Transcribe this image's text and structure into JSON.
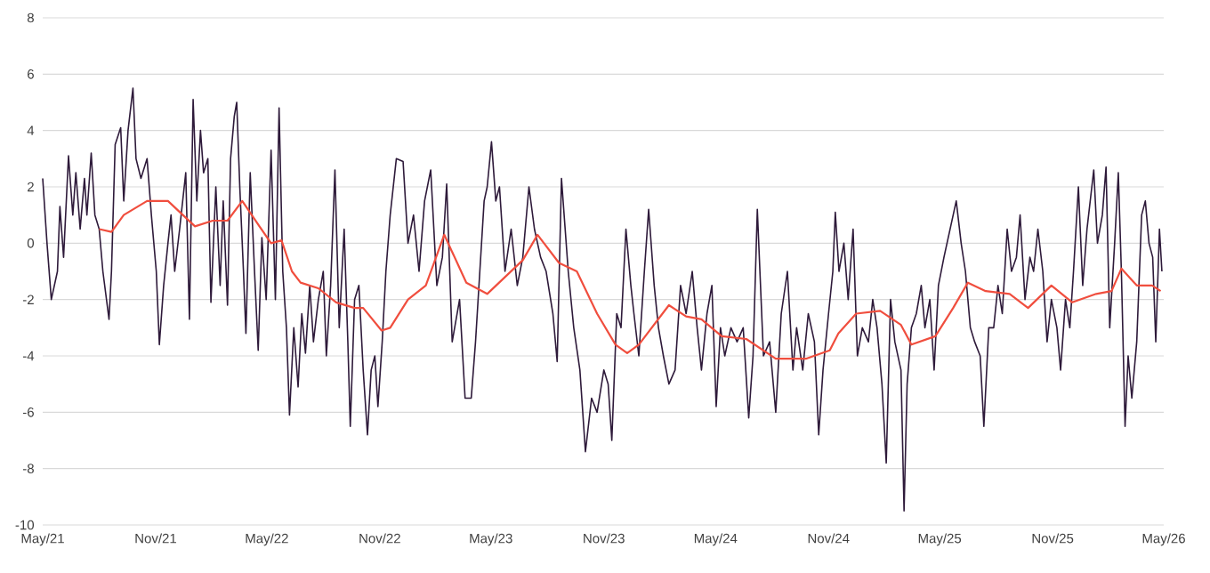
{
  "chart_data": {
    "type": "line",
    "xlim": [
      "2021-05",
      "2026-05"
    ],
    "xticks": [
      {
        "value": "2021-05",
        "label": "May/21"
      },
      {
        "value": "2021-11",
        "label": "Nov/21"
      },
      {
        "value": "2022-05",
        "label": "May/22"
      },
      {
        "value": "2022-11",
        "label": "Nov/22"
      },
      {
        "value": "2023-05",
        "label": "May/23"
      },
      {
        "value": "2023-11",
        "label": "Nov/23"
      },
      {
        "value": "2024-05",
        "label": "May/24"
      },
      {
        "value": "2024-11",
        "label": "Nov/24"
      },
      {
        "value": "2025-05",
        "label": "May/25"
      },
      {
        "value": "2025-11",
        "label": "Nov/25"
      },
      {
        "value": "2026-05",
        "label": "May/26"
      }
    ],
    "ylim": [
      -10,
      8
    ],
    "yticks": [
      -10,
      -8,
      -6,
      -4,
      -2,
      0,
      2,
      4,
      6,
      8
    ],
    "grid": "y",
    "series": [
      {
        "color": "#2e1a3a",
        "x": [
          "2021-05-01",
          "2021-05-08",
          "2021-05-15",
          "2021-05-25",
          "2021-05-29",
          "2021-06-04",
          "2021-06-12",
          "2021-06-19",
          "2021-06-24",
          "2021-07-01",
          "2021-07-08",
          "2021-07-12",
          "2021-07-19",
          "2021-07-25",
          "2021-08-01",
          "2021-08-07",
          "2021-08-17",
          "2021-08-21",
          "2021-08-27",
          "2021-09-05",
          "2021-09-10",
          "2021-09-17",
          "2021-09-25",
          "2021-09-30",
          "2021-10-08",
          "2021-10-18",
          "2021-10-25",
          "2021-11-02",
          "2021-11-07",
          "2021-11-14",
          "2021-11-21",
          "2021-11-26",
          "2021-12-02",
          "2021-12-10",
          "2021-12-20",
          "2021-12-26",
          "2022-01-01",
          "2022-01-07",
          "2022-01-13",
          "2022-01-18",
          "2022-01-25",
          "2022-01-30",
          "2022-02-07",
          "2022-02-14",
          "2022-02-19",
          "2022-02-26",
          "2022-03-03",
          "2022-03-09",
          "2022-03-13",
          "2022-03-18",
          "2022-03-24",
          "2022-03-28",
          "2022-04-04",
          "2022-04-11",
          "2022-04-17",
          "2022-04-23",
          "2022-04-30",
          "2022-05-08",
          "2022-05-15",
          "2022-05-21",
          "2022-05-27",
          "2022-06-02",
          "2022-06-07",
          "2022-06-14",
          "2022-06-21",
          "2022-06-27",
          "2022-07-03",
          "2022-07-10",
          "2022-07-16",
          "2022-07-24",
          "2022-08-01",
          "2022-08-06",
          "2022-08-13",
          "2022-08-20",
          "2022-08-27",
          "2022-09-04",
          "2022-09-10",
          "2022-09-14",
          "2022-09-21",
          "2022-09-28",
          "2022-10-05",
          "2022-10-12",
          "2022-10-18",
          "2022-10-24",
          "2022-10-29",
          "2022-11-05",
          "2022-11-11",
          "2022-11-18",
          "2022-11-28",
          "2022-12-09",
          "2022-12-17",
          "2022-12-26",
          "2023-01-04",
          "2023-01-13",
          "2023-01-23",
          "2023-02-02",
          "2023-02-11",
          "2023-02-18",
          "2023-02-27",
          "2023-03-11",
          "2023-03-20",
          "2023-03-30",
          "2023-04-06",
          "2023-04-13",
          "2023-04-20",
          "2023-04-25",
          "2023-05-02",
          "2023-05-09",
          "2023-05-15",
          "2023-05-24",
          "2023-06-03",
          "2023-06-13",
          "2023-06-22",
          "2023-07-02",
          "2023-07-11",
          "2023-07-21",
          "2023-07-30",
          "2023-08-10",
          "2023-08-17",
          "2023-08-24",
          "2023-09-04",
          "2023-09-13",
          "2023-09-23",
          "2023-10-02",
          "2023-10-12",
          "2023-10-21",
          "2023-11-01",
          "2023-11-08",
          "2023-11-14",
          "2023-11-22",
          "2023-11-29",
          "2023-12-07",
          "2023-12-15",
          "2023-12-20",
          "2023-12-28",
          "2024-01-06",
          "2024-01-13",
          "2024-01-22",
          "2024-01-29",
          "2024-02-06",
          "2024-02-15",
          "2024-02-25",
          "2024-03-05",
          "2024-03-14",
          "2024-03-24",
          "2024-04-01",
          "2024-04-08",
          "2024-04-17",
          "2024-04-25",
          "2024-05-02",
          "2024-05-09",
          "2024-05-16",
          "2024-05-26",
          "2024-06-05",
          "2024-06-15",
          "2024-06-24",
          "2024-07-01",
          "2024-07-08",
          "2024-07-18",
          "2024-07-28",
          "2024-08-07",
          "2024-08-16",
          "2024-08-26",
          "2024-09-04",
          "2024-09-10",
          "2024-09-20",
          "2024-09-29",
          "2024-10-09",
          "2024-10-16",
          "2024-10-23",
          "2024-11-01",
          "2024-11-08",
          "2024-11-12",
          "2024-11-18",
          "2024-11-26",
          "2024-12-03",
          "2024-12-11",
          "2024-12-18",
          "2024-12-26",
          "2025-01-05",
          "2025-01-12",
          "2025-01-19",
          "2025-01-27",
          "2025-02-03",
          "2025-02-10",
          "2025-02-17",
          "2025-02-27",
          "2025-03-04",
          "2025-03-09",
          "2025-03-16",
          "2025-03-24",
          "2025-04-01",
          "2025-04-07",
          "2025-04-15",
          "2025-04-22",
          "2025-04-29",
          "2025-05-08",
          "2025-05-18",
          "2025-05-28",
          "2025-06-05",
          "2025-06-12",
          "2025-06-20",
          "2025-06-27",
          "2025-07-06",
          "2025-07-12",
          "2025-07-20",
          "2025-07-28",
          "2025-08-04",
          "2025-08-11",
          "2025-08-19",
          "2025-08-26",
          "2025-09-03",
          "2025-09-09",
          "2025-09-17",
          "2025-09-25",
          "2025-10-01",
          "2025-10-08",
          "2025-10-16",
          "2025-10-23",
          "2025-10-30",
          "2025-11-08",
          "2025-11-14",
          "2025-11-22",
          "2025-11-29",
          "2025-12-05",
          "2025-12-13",
          "2025-12-20",
          "2025-12-27",
          "2026-01-07",
          "2026-01-13",
          "2026-01-21",
          "2026-01-27",
          "2026-02-02",
          "2026-02-10",
          "2026-02-16",
          "2026-02-21",
          "2026-02-27",
          "2026-03-04",
          "2026-03-10",
          "2026-03-18",
          "2026-03-26",
          "2026-04-01",
          "2026-04-07",
          "2026-04-13",
          "2026-04-18",
          "2026-04-24",
          "2026-04-28"
        ],
        "values": [
          2.3,
          0.0,
          -2.0,
          -1.0,
          1.3,
          -0.5,
          3.1,
          1.0,
          2.5,
          0.5,
          2.3,
          1.0,
          3.2,
          1.0,
          0.5,
          -1.0,
          -2.7,
          -1.0,
          3.5,
          4.1,
          1.5,
          4.0,
          5.5,
          3.0,
          2.3,
          3.0,
          1.0,
          -1.0,
          -3.6,
          -1.5,
          0.0,
          1.0,
          -1.0,
          0.5,
          2.5,
          -2.7,
          5.1,
          1.5,
          4.0,
          2.5,
          3.0,
          -2.1,
          2.0,
          -1.5,
          1.5,
          -2.2,
          3.0,
          4.5,
          5.0,
          2.0,
          -1.0,
          -3.2,
          2.5,
          -1.0,
          -3.8,
          0.2,
          -2.0,
          3.3,
          -2.0,
          4.8,
          -1.0,
          -3.0,
          -6.1,
          -3.0,
          -5.1,
          -2.5,
          -3.9,
          -1.5,
          -3.5,
          -2.0,
          -1.0,
          -4.0,
          -1.5,
          2.6,
          -3.0,
          0.5,
          -3.5,
          -6.5,
          -2.0,
          -1.5,
          -4.5,
          -6.8,
          -4.5,
          -4.0,
          -5.8,
          -3.5,
          -1.0,
          1.0,
          3.0,
          2.9,
          0.0,
          1.0,
          -1.0,
          1.5,
          2.6,
          -1.5,
          -0.5,
          2.1,
          -3.5,
          -2.0,
          -5.5,
          -5.5,
          -3.5,
          -1.0,
          1.5,
          2.0,
          3.6,
          1.5,
          2.0,
          -1.0,
          0.5,
          -1.5,
          -0.5,
          2.0,
          0.5,
          -0.5,
          -1.0,
          -2.5,
          -4.2,
          2.3,
          -1.0,
          -3.0,
          -4.5,
          -7.4,
          -5.5,
          -6.0,
          -4.5,
          -5.0,
          -7.0,
          -2.5,
          -3.0,
          0.5,
          -1.5,
          -2.5,
          -4.0,
          -1.0,
          1.2,
          -1.5,
          -3.0,
          -4.0,
          -5.0,
          -4.5,
          -1.5,
          -2.5,
          -1.0,
          -3.0,
          -4.5,
          -2.5,
          -1.5,
          -5.8,
          -3.0,
          -4.0,
          -3.0,
          -3.5,
          -3.0,
          -6.2,
          -4.0,
          1.2,
          -4.0,
          -3.5,
          -6.0,
          -2.5,
          -1.0,
          -4.5,
          -3.0,
          -4.5,
          -2.5,
          -3.5,
          -6.8,
          -4.5,
          -2.5,
          -1.0,
          1.1,
          -1.0,
          0.0,
          -2.0,
          0.5,
          -4.0,
          -3.0,
          -3.5,
          -2.0,
          -3.0,
          -5.0,
          -7.8,
          -2.0,
          -3.5,
          -4.5,
          -9.5,
          -5.0,
          -3.0,
          -2.5,
          -1.5,
          -3.0,
          -2.0,
          -4.5,
          -1.5,
          -0.5,
          0.5,
          1.5,
          0.0,
          -1.0,
          -3.0,
          -3.5,
          -4.0,
          -6.5,
          -3.0,
          -3.0,
          -1.5,
          -2.5,
          0.5,
          -1.0,
          -0.5,
          1.0,
          -2.0,
          -0.5,
          -1.0,
          0.5,
          -1.0,
          -3.5,
          -2.0,
          -3.0,
          -4.5,
          -2.0,
          -3.0,
          -1.0,
          2.0,
          -1.5,
          0.5,
          2.6,
          0.0,
          1.0,
          2.7,
          -3.0,
          0.0,
          2.5,
          -1.0,
          -6.5,
          -4.0,
          -5.5,
          -3.5,
          1.0,
          1.5,
          0.0,
          -0.5,
          -3.5,
          0.5,
          -1.0
        ]
      },
      {
        "color": "#f04e3e",
        "x": [
          "2021-08-01",
          "2021-08-21",
          "2021-09-10",
          "2021-10-18",
          "2021-11-21",
          "2022-01-04",
          "2022-02-02",
          "2022-02-26",
          "2022-03-22",
          "2022-04-19",
          "2022-05-08",
          "2022-05-25",
          "2022-06-11",
          "2022-06-25",
          "2022-07-24",
          "2022-08-22",
          "2022-09-21",
          "2022-10-05",
          "2022-11-04",
          "2022-11-18",
          "2022-12-17",
          "2023-01-15",
          "2023-02-14",
          "2023-03-22",
          "2023-04-25",
          "2023-05-24",
          "2023-06-22",
          "2023-07-16",
          "2023-08-20",
          "2023-09-18",
          "2023-10-21",
          "2023-11-20",
          "2023-12-09",
          "2023-12-28",
          "2024-02-15",
          "2024-03-14",
          "2024-04-08",
          "2024-05-11",
          "2024-06-20",
          "2024-08-07",
          "2024-09-25",
          "2024-11-03",
          "2024-11-17",
          "2024-12-16",
          "2025-01-24",
          "2025-02-27",
          "2025-03-16",
          "2025-04-24",
          "2025-05-23",
          "2025-06-16",
          "2025-07-15",
          "2025-08-23",
          "2025-09-22",
          "2025-10-30",
          "2025-12-03",
          "2026-01-11",
          "2026-02-05",
          "2026-02-21",
          "2026-03-18",
          "2026-04-12",
          "2026-04-26"
        ],
        "values": [
          0.5,
          0.4,
          1.0,
          1.5,
          1.5,
          0.6,
          0.8,
          0.8,
          1.5,
          0.6,
          0.0,
          0.1,
          -1.0,
          -1.4,
          -1.6,
          -2.1,
          -2.3,
          -2.3,
          -3.1,
          -3.0,
          -2.0,
          -1.5,
          0.3,
          -1.4,
          -1.8,
          -1.2,
          -0.6,
          0.3,
          -0.7,
          -1.0,
          -2.5,
          -3.6,
          -3.9,
          -3.6,
          -2.2,
          -2.6,
          -2.7,
          -3.3,
          -3.4,
          -4.1,
          -4.1,
          -3.8,
          -3.2,
          -2.5,
          -2.4,
          -2.9,
          -3.6,
          -3.3,
          -2.3,
          -1.4,
          -1.7,
          -1.8,
          -2.3,
          -1.5,
          -2.1,
          -1.8,
          -1.7,
          -0.9,
          -1.5,
          -1.5,
          -1.7
        ]
      }
    ]
  }
}
